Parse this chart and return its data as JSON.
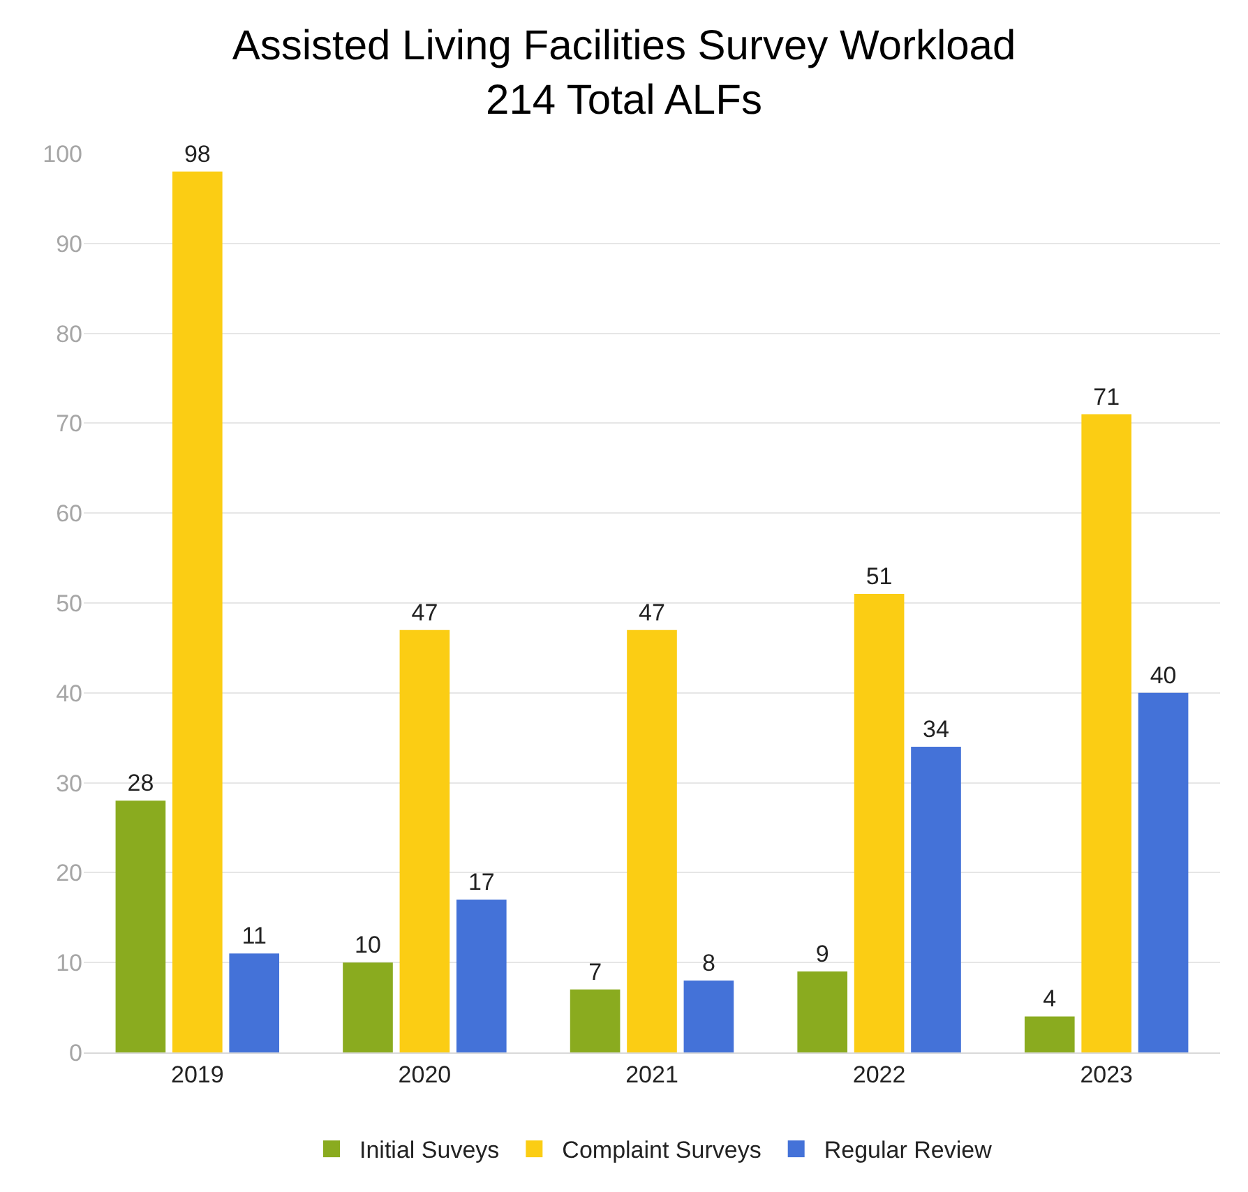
{
  "chart_data": {
    "type": "bar",
    "title": "Assisted Living Facilities Survey Workload",
    "subtitle": "214 Total ALFs",
    "categories": [
      "2019",
      "2020",
      "2021",
      "2022",
      "2023"
    ],
    "series": [
      {
        "name": "Initial Suveys",
        "color": "#8aab1f",
        "values": [
          28,
          10,
          7,
          9,
          4
        ]
      },
      {
        "name": "Complaint Surveys",
        "color": "#fbcd14",
        "values": [
          98,
          47,
          47,
          51,
          71
        ]
      },
      {
        "name": "Regular Review",
        "color": "#4472d8",
        "values": [
          11,
          17,
          8,
          34,
          40
        ]
      }
    ],
    "ylim": [
      0,
      100
    ],
    "yticks": [
      0,
      10,
      20,
      30,
      40,
      50,
      60,
      70,
      80,
      90,
      100
    ],
    "grid": "y",
    "legend": "bottom",
    "data_labels": true
  }
}
